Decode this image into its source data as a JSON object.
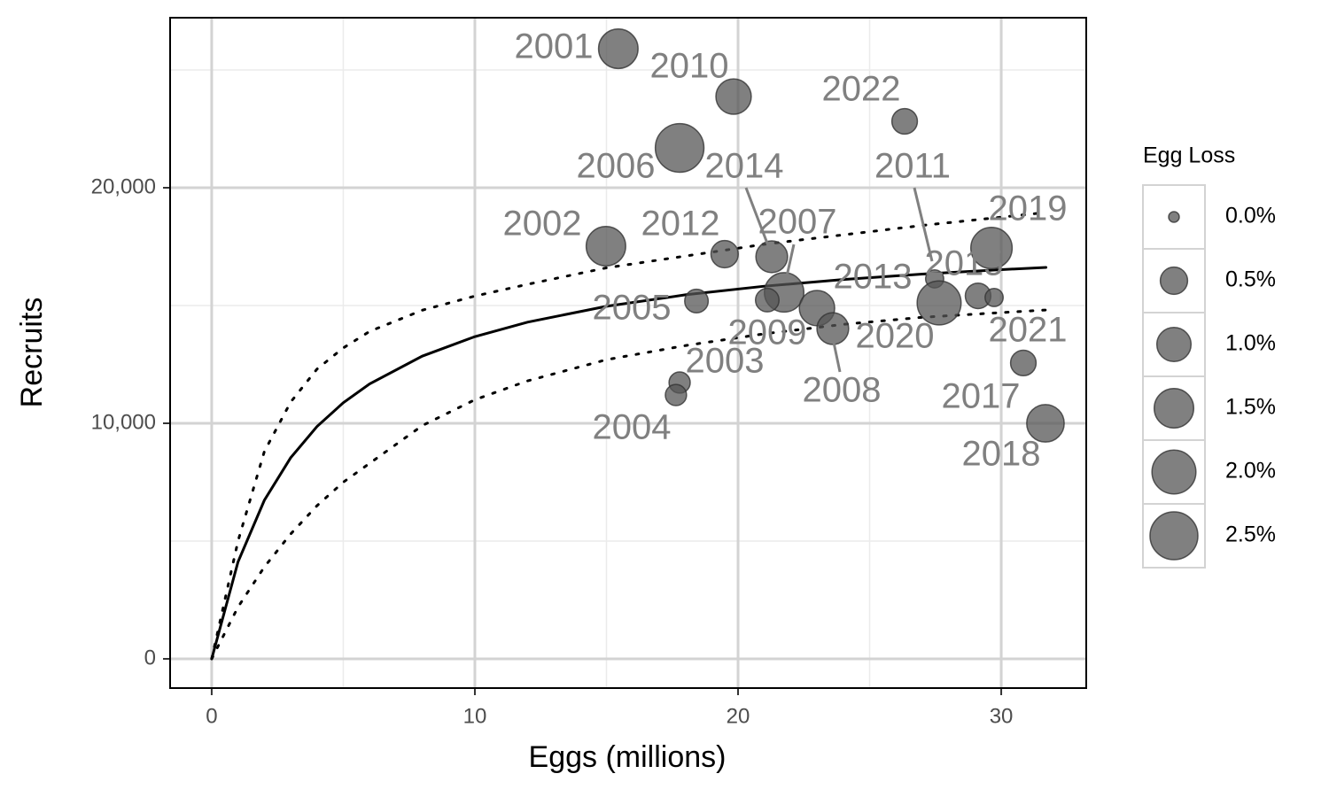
{
  "chart_data": {
    "type": "scatter",
    "x_label": "Eggs (millions)",
    "y_label": "Recruits",
    "xlim": [
      -1.58,
      33.23
    ],
    "ylim": [
      -1241,
      27218
    ],
    "xticks": [
      0,
      10,
      20,
      30
    ],
    "yticks": [
      0,
      {
        "value": 10000,
        "label": "10,000"
      },
      {
        "value": 20000,
        "label": "20,000"
      }
    ],
    "x_minor_grid": [
      5,
      15,
      25
    ],
    "y_minor_grid": [
      5000,
      15000,
      25000
    ],
    "grid": true,
    "points": {
      "color": "#555555",
      "labels": [
        "2001",
        "2010",
        "2022",
        "2006",
        "2002",
        "2012",
        "2014",
        "2007",
        "2019",
        "2015",
        "2005",
        "2009",
        "2020",
        "2008",
        "2011",
        "2013",
        "2021",
        "2003",
        "2004",
        "2017",
        "2018"
      ],
      "x": [
        15.45,
        19.83,
        26.33,
        17.78,
        14.98,
        19.49,
        21.28,
        21.75,
        29.63,
        27.47,
        18.42,
        21.11,
        23.0,
        23.6,
        27.64,
        29.12,
        29.73,
        17.78,
        17.64,
        30.84,
        31.68
      ],
      "y": [
        25900,
        23870,
        22820,
        21690,
        17520,
        17180,
        17070,
        15560,
        17440,
        16130,
        15190,
        15230,
        14890,
        14020,
        15110,
        15410,
        15340,
        11730,
        11200,
        12560,
        10000
      ],
      "size": [
        1.5,
        1.1,
        0.4,
        2.6,
        1.5,
        0.5,
        0.8,
        1.5,
        1.7,
        0.1,
        0.3,
        0.3,
        1.1,
        0.8,
        2.0,
        0.4,
        0.1,
        0.2,
        0.2,
        0.4,
        1.3
      ]
    },
    "size_legend": {
      "title": "Egg Loss",
      "values": [
        {
          "value": 0,
          "label": "0.0%"
        },
        {
          "value": 0.5,
          "label": "0.5%"
        },
        {
          "value": 1.0,
          "label": "1.0%"
        },
        {
          "value": 1.5,
          "label": "1.5%"
        },
        {
          "value": 2.0,
          "label": "2.0%"
        },
        {
          "value": 2.5,
          "label": "2.5%"
        }
      ]
    },
    "lines": [
      {
        "style": "solid",
        "color": "#000000",
        "x": [
          0,
          1,
          2,
          3,
          4,
          5,
          6,
          8,
          10,
          12,
          15,
          18,
          21,
          24,
          27,
          30,
          31.7
        ],
        "values": [
          0,
          4116,
          6729,
          8536,
          9861,
          10872,
          11670,
          12851,
          13679,
          14293,
          14966,
          15454,
          15820,
          16105,
          16335,
          16524,
          16617
        ]
      },
      {
        "style": "dotted",
        "color": "#000000",
        "x": [
          0,
          1,
          2,
          3,
          4,
          5,
          6,
          8,
          10,
          12,
          15,
          18,
          21,
          24,
          27,
          30,
          31.7
        ],
        "values": [
          0,
          5000,
          8800,
          10900,
          12300,
          13200,
          13900,
          14800,
          15400,
          15900,
          16600,
          17100,
          17600,
          18000,
          18400,
          18750,
          18950
        ]
      },
      {
        "style": "dotted",
        "color": "#000000",
        "x": [
          0,
          1,
          2,
          3,
          4,
          5,
          6,
          8,
          10,
          12,
          15,
          18,
          21,
          24,
          27,
          30,
          31.7
        ],
        "values": [
          0,
          2200,
          3900,
          5300,
          6500,
          7500,
          8300,
          9900,
          11000,
          11800,
          12700,
          13300,
          13800,
          14200,
          14500,
          14700,
          14810
        ]
      }
    ]
  }
}
